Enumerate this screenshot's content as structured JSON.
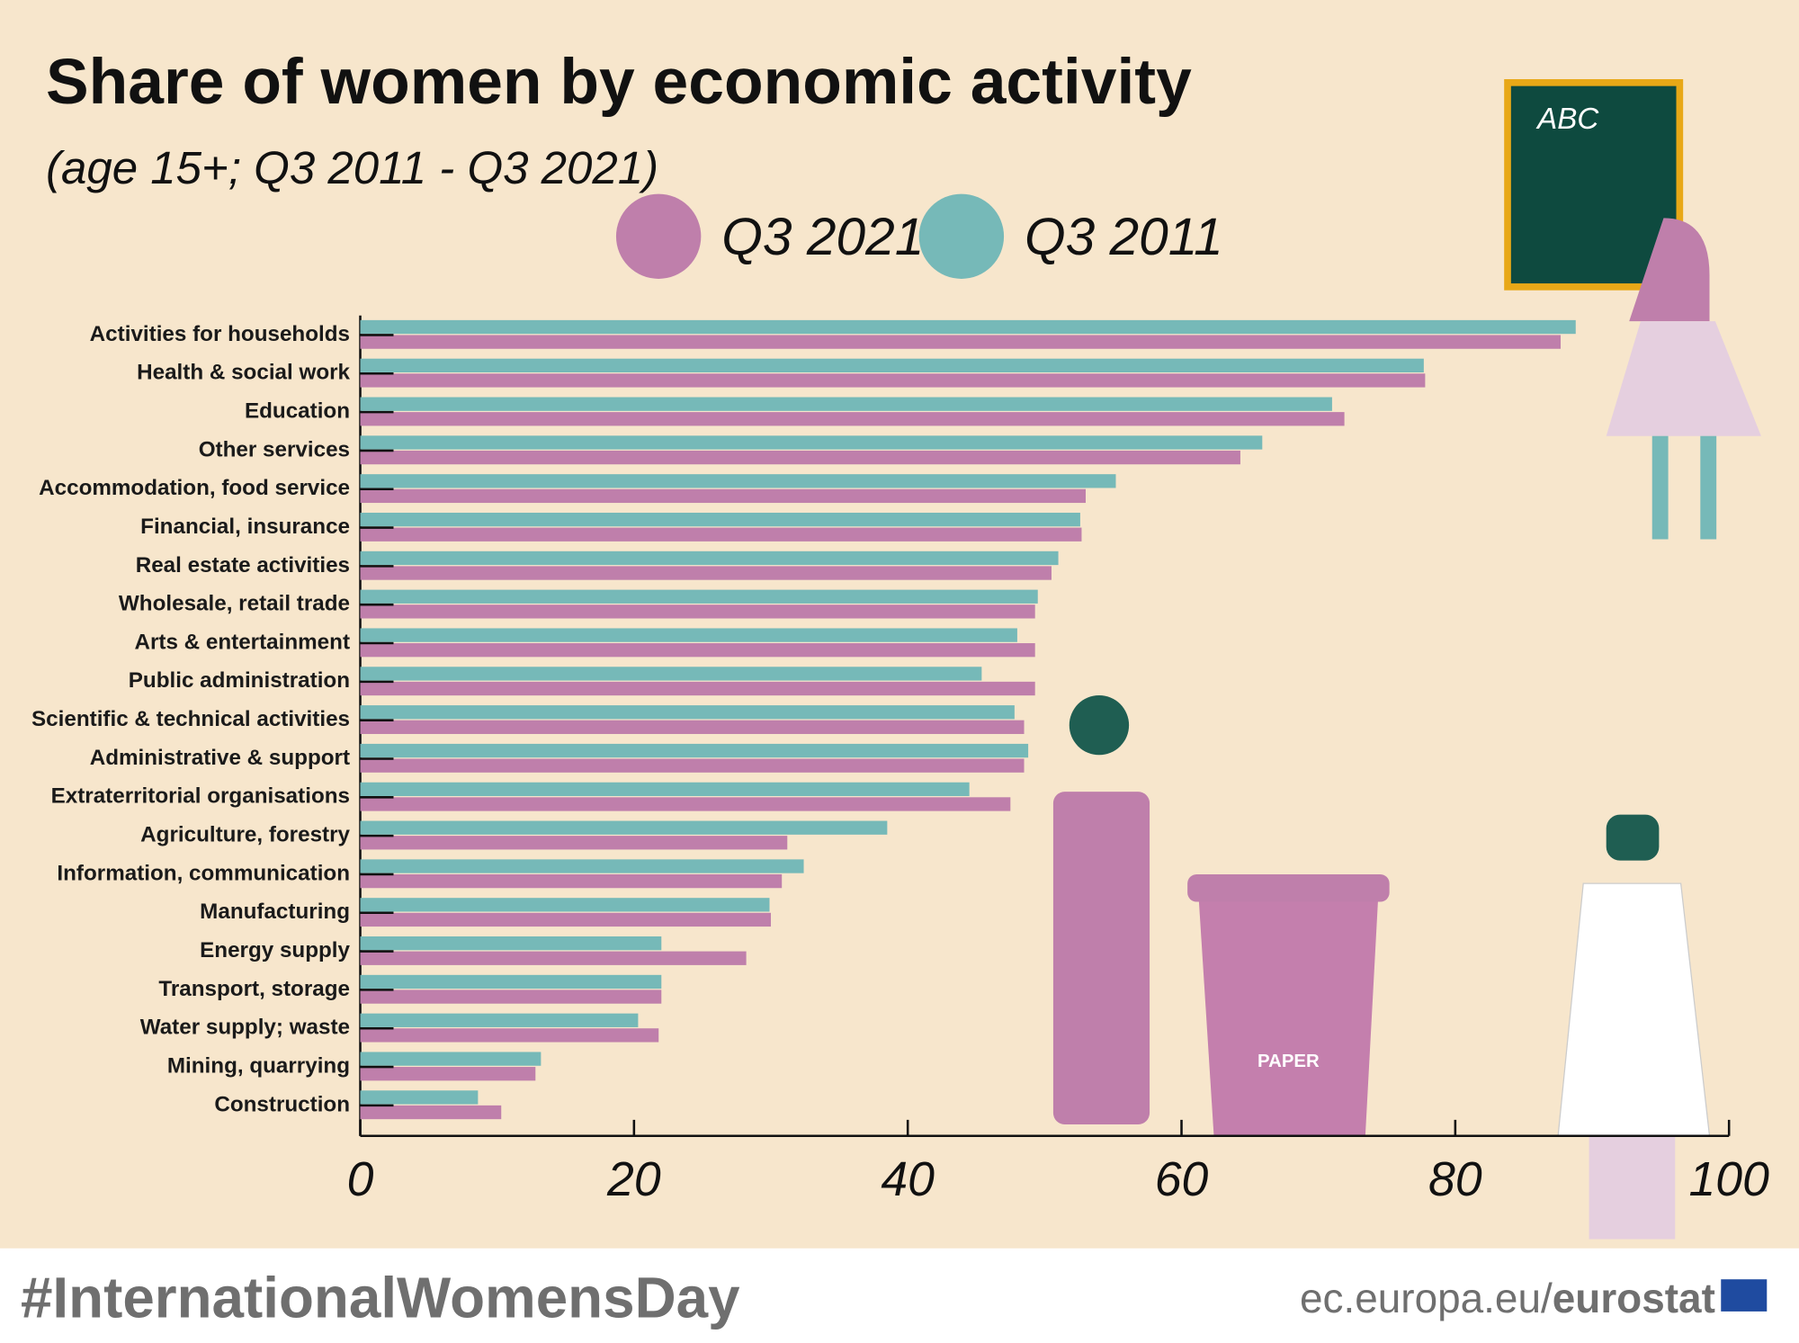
{
  "chart_data": {
    "type": "bar",
    "orientation": "horizontal",
    "title": "Share of women by economic activity",
    "subtitle": "(age 15+; Q3 2011 - Q3 2021)",
    "categories": [
      "Activities for households",
      "Health & social work",
      "Education",
      "Other services",
      "Accommodation, food service",
      "Financial, insurance",
      "Real estate activities",
      "Wholesale, retail trade",
      "Arts & entertainment",
      "Public administration",
      "Scientific & technical activities",
      "Administrative & support",
      "Extraterritorial organisations",
      "Agriculture, forestry",
      "Information, communication",
      "Manufacturing",
      "Energy supply",
      "Transport, storage",
      "Water supply; waste",
      "Mining, quarrying",
      "Construction"
    ],
    "series": [
      {
        "name": "Q3 2021",
        "color": "#bf7fab",
        "values": [
          87.7,
          77.8,
          71.9,
          64.3,
          53.0,
          52.7,
          50.5,
          49.3,
          49.3,
          49.3,
          48.5,
          48.5,
          47.5,
          31.2,
          30.8,
          30.0,
          28.2,
          22.0,
          21.8,
          12.8,
          10.3
        ]
      },
      {
        "name": "Q3 2011",
        "color": "#76b9b8",
        "values": [
          88.8,
          77.7,
          71.0,
          65.9,
          55.2,
          52.6,
          51.0,
          49.5,
          48.0,
          45.4,
          47.8,
          48.8,
          44.5,
          38.5,
          32.4,
          29.9,
          22.0,
          22.0,
          20.3,
          13.2,
          8.6
        ]
      }
    ],
    "xlim": [
      0,
      100
    ],
    "xticks": [
      0,
      20,
      40,
      60,
      80,
      100
    ]
  },
  "illustration": {
    "board_text": "ABC",
    "bin_label": "PAPER"
  },
  "footer": {
    "hashtag": "#InternationalWomensDay",
    "site": "ec.europa.eu/",
    "brand": "eurostat"
  }
}
